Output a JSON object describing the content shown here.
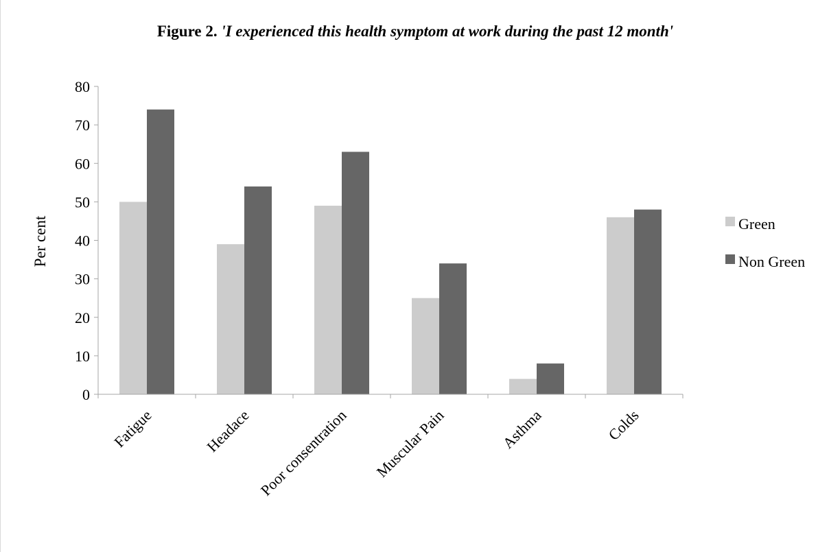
{
  "chart_data": {
    "type": "bar",
    "title_prefix": "Figure 2.",
    "title_quote": "'I experienced this health symptom at work during the past 12 month'",
    "xlabel": "",
    "ylabel": "Per cent",
    "ylim": [
      0,
      80
    ],
    "yticks": [
      0,
      10,
      20,
      30,
      40,
      50,
      60,
      70,
      80
    ],
    "categories": [
      "Fatigue",
      "Headace",
      "Poor consentration",
      "Muscular Pain",
      "Asthma",
      "Colds"
    ],
    "series": [
      {
        "name": "Green",
        "color": "#cccccc",
        "values": [
          50,
          39,
          49,
          25,
          4,
          46
        ]
      },
      {
        "name": "Non Green",
        "color": "#666666",
        "values": [
          74,
          54,
          63,
          34,
          8,
          48
        ]
      }
    ],
    "grid": false,
    "legend_position": "right"
  }
}
